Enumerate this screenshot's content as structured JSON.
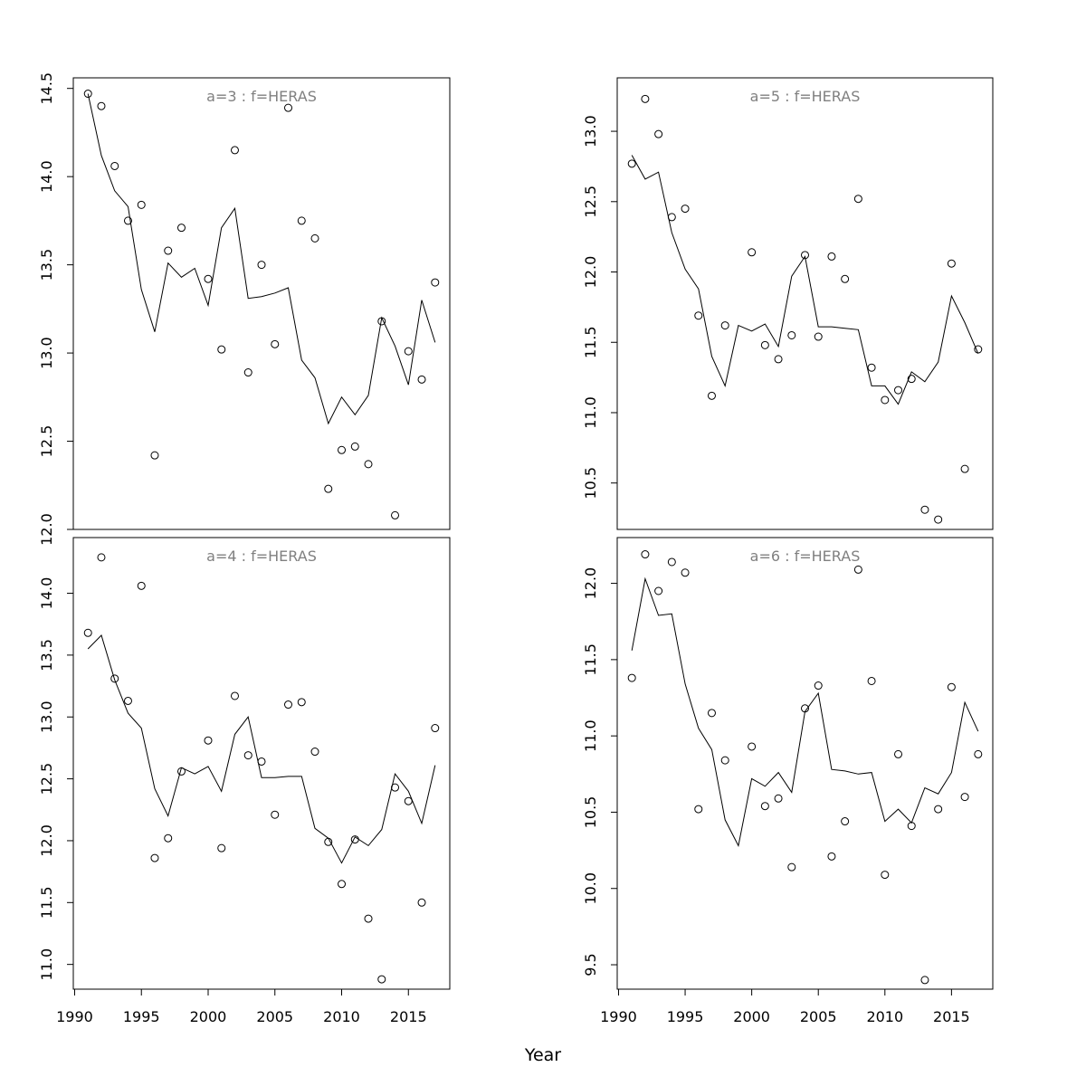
{
  "figure": {
    "xlabel": "Year",
    "colors": {
      "fit_line": "#000000",
      "observed_points": "#000000",
      "panel_title": "#808080"
    }
  },
  "chart_data": [
    {
      "type": "scatter",
      "title": "a=3  :  f=HERAS",
      "xlabel": "",
      "ylabel": "",
      "xlim": [
        1989.9,
        2018.1
      ],
      "ylim": [
        12.0,
        14.56
      ],
      "yticks": [
        12.0,
        12.5,
        13.0,
        13.5,
        14.0,
        14.5
      ],
      "x": [
        1991,
        1992,
        1993,
        1994,
        1995,
        1996,
        1997,
        1998,
        1999,
        2000,
        2001,
        2002,
        2003,
        2004,
        2005,
        2006,
        2007,
        2008,
        2009,
        2010,
        2011,
        2012,
        2013,
        2014,
        2015,
        2016,
        2017
      ],
      "series": [
        {
          "name": "observed",
          "kind": "points",
          "values": [
            14.47,
            14.4,
            14.06,
            13.75,
            13.84,
            12.42,
            13.58,
            13.71,
            null,
            13.42,
            13.02,
            14.15,
            12.89,
            13.5,
            13.05,
            14.39,
            13.75,
            13.65,
            12.23,
            12.45,
            12.47,
            12.37,
            13.18,
            12.08,
            13.01,
            12.85,
            13.4
          ]
        },
        {
          "name": "fitted",
          "kind": "line",
          "values": [
            14.47,
            14.12,
            13.92,
            13.83,
            13.36,
            13.12,
            13.51,
            13.43,
            13.48,
            13.27,
            13.71,
            13.82,
            13.31,
            13.32,
            13.34,
            13.37,
            12.96,
            12.86,
            12.6,
            12.75,
            12.65,
            12.76,
            13.2,
            13.04,
            12.82,
            13.3,
            13.06
          ]
        }
      ]
    },
    {
      "type": "scatter",
      "title": "a=5  :  f=HERAS",
      "xlabel": "",
      "ylabel": "",
      "xlim": [
        1989.9,
        2018.1
      ],
      "ylim": [
        10.17,
        13.38
      ],
      "yticks": [
        10.5,
        11.0,
        11.5,
        12.0,
        12.5,
        13.0
      ],
      "x": [
        1991,
        1992,
        1993,
        1994,
        1995,
        1996,
        1997,
        1998,
        1999,
        2000,
        2001,
        2002,
        2003,
        2004,
        2005,
        2006,
        2007,
        2008,
        2009,
        2010,
        2011,
        2012,
        2013,
        2014,
        2015,
        2016,
        2017
      ],
      "series": [
        {
          "name": "observed",
          "kind": "points",
          "values": [
            12.77,
            13.23,
            12.98,
            12.39,
            12.45,
            11.69,
            11.12,
            11.62,
            null,
            12.14,
            11.48,
            11.38,
            11.55,
            12.12,
            11.54,
            12.11,
            11.95,
            12.52,
            11.32,
            11.09,
            11.16,
            11.24,
            10.31,
            10.24,
            12.06,
            10.6,
            11.45
          ]
        },
        {
          "name": "fitted",
          "kind": "line",
          "values": [
            12.83,
            12.66,
            12.71,
            12.28,
            12.02,
            11.88,
            11.4,
            11.19,
            11.62,
            11.58,
            11.63,
            11.47,
            11.97,
            12.11,
            11.61,
            11.61,
            11.6,
            11.59,
            11.19,
            11.19,
            11.06,
            11.29,
            11.22,
            11.36,
            11.83,
            11.64,
            11.42
          ]
        }
      ]
    },
    {
      "type": "scatter",
      "title": "a=4  :  f=HERAS",
      "xlabel": "",
      "ylabel": "",
      "xlim": [
        1989.9,
        2018.1
      ],
      "ylim": [
        10.8,
        14.45
      ],
      "yticks": [
        11.0,
        11.5,
        12.0,
        12.5,
        13.0,
        13.5,
        14.0
      ],
      "x": [
        1991,
        1992,
        1993,
        1994,
        1995,
        1996,
        1997,
        1998,
        1999,
        2000,
        2001,
        2002,
        2003,
        2004,
        2005,
        2006,
        2007,
        2008,
        2009,
        2010,
        2011,
        2012,
        2013,
        2014,
        2015,
        2016,
        2017
      ],
      "series": [
        {
          "name": "observed",
          "kind": "points",
          "values": [
            13.68,
            14.29,
            13.31,
            13.13,
            14.06,
            11.86,
            12.02,
            12.56,
            null,
            12.81,
            11.94,
            13.17,
            12.69,
            12.64,
            12.21,
            13.1,
            13.12,
            12.72,
            11.99,
            11.65,
            12.01,
            11.37,
            10.88,
            12.43,
            12.32,
            11.5,
            12.91
          ]
        },
        {
          "name": "fitted",
          "kind": "line",
          "values": [
            13.55,
            13.66,
            13.3,
            13.03,
            12.91,
            12.42,
            12.2,
            12.59,
            12.54,
            12.6,
            12.4,
            12.86,
            13.0,
            12.51,
            12.51,
            12.52,
            12.52,
            12.1,
            12.02,
            11.82,
            12.03,
            11.96,
            12.09,
            12.54,
            12.4,
            12.14,
            12.61
          ]
        }
      ]
    },
    {
      "type": "scatter",
      "title": "a=6  :  f=HERAS",
      "xlabel": "",
      "ylabel": "",
      "xlim": [
        1989.9,
        2018.1
      ],
      "ylim": [
        9.34,
        12.3
      ],
      "yticks": [
        9.5,
        10.0,
        10.5,
        11.0,
        11.5,
        12.0
      ],
      "x": [
        1991,
        1992,
        1993,
        1994,
        1995,
        1996,
        1997,
        1998,
        1999,
        2000,
        2001,
        2002,
        2003,
        2004,
        2005,
        2006,
        2007,
        2008,
        2009,
        2010,
        2011,
        2012,
        2013,
        2014,
        2015,
        2016,
        2017
      ],
      "series": [
        {
          "name": "observed",
          "kind": "points",
          "values": [
            11.38,
            12.19,
            11.95,
            12.14,
            12.07,
            10.52,
            11.15,
            10.84,
            null,
            10.93,
            10.54,
            10.59,
            10.14,
            11.18,
            11.33,
            10.21,
            10.44,
            12.09,
            11.36,
            10.09,
            10.88,
            10.41,
            9.4,
            10.52,
            11.32,
            10.6,
            10.88
          ]
        },
        {
          "name": "fitted",
          "kind": "line",
          "values": [
            11.56,
            12.03,
            11.79,
            11.8,
            11.34,
            11.05,
            10.91,
            10.45,
            10.28,
            10.72,
            10.67,
            10.76,
            10.63,
            11.16,
            11.28,
            10.78,
            10.77,
            10.75,
            10.76,
            10.44,
            10.52,
            10.43,
            10.66,
            10.62,
            10.76,
            11.22,
            11.03
          ]
        }
      ]
    }
  ]
}
